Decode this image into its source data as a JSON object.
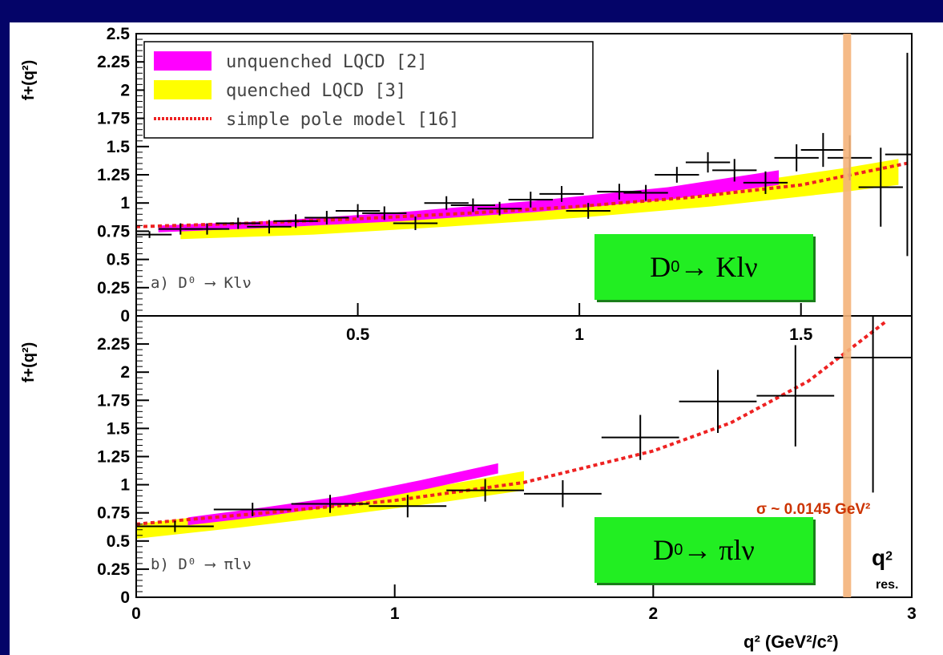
{
  "chart_data": [
    {
      "type": "line",
      "panel": "a",
      "process_label": "a) D⁰ ⟶ Klν",
      "ylabel": "f+(q²)",
      "xlim": [
        0,
        1.75
      ],
      "ylim": [
        0,
        2.5
      ],
      "y_ticks": [
        "2.5",
        "2.25",
        "2",
        "1.75",
        "1.5",
        "1.25",
        "1",
        "0.75",
        "0.5",
        "0.25",
        "0"
      ],
      "x_ticks": [
        "0.5",
        "1",
        "1.5"
      ],
      "legend": [
        {
          "label": "unquenched LQCD [2]",
          "color": "#ff00ff",
          "style": "band"
        },
        {
          "label": "quenched LQCD [3]",
          "color": "#ffff00",
          "style": "band"
        },
        {
          "label": "simple pole model [16]",
          "color": "#ee2222",
          "style": "dotted"
        }
      ],
      "series": [
        {
          "name": "unquenched LQCD [2]",
          "band": {
            "x": [
              0.05,
              0.3,
              0.6,
              0.9,
              1.2,
              1.45
            ],
            "lo": [
              0.74,
              0.78,
              0.84,
              0.92,
              1.03,
              1.16
            ],
            "hi": [
              0.8,
              0.84,
              0.92,
              1.02,
              1.14,
              1.29
            ]
          }
        },
        {
          "name": "quenched LQCD [3]",
          "band": {
            "x": [
              0.1,
              0.4,
              0.7,
              1.0,
              1.3,
              1.6,
              1.72
            ],
            "lo": [
              0.68,
              0.72,
              0.79,
              0.87,
              0.97,
              1.1,
              1.16
            ],
            "hi": [
              0.78,
              0.83,
              0.9,
              1.0,
              1.14,
              1.31,
              1.39
            ]
          }
        },
        {
          "name": "simple pole model [16]",
          "x": [
            0,
            0.25,
            0.5,
            0.75,
            1.0,
            1.25,
            1.5,
            1.75
          ],
          "y": [
            0.79,
            0.82,
            0.86,
            0.91,
            0.97,
            1.05,
            1.16,
            1.36
          ]
        },
        {
          "points": [
            {
              "x": 0.03,
              "y": 0.72,
              "xe": 0.05,
              "ye": 0.03
            },
            {
              "x": 0.1,
              "y": 0.77,
              "xe": 0.05,
              "ye": 0.05
            },
            {
              "x": 0.16,
              "y": 0.77,
              "xe": 0.05,
              "ye": 0.05
            },
            {
              "x": 0.23,
              "y": 0.82,
              "xe": 0.05,
              "ye": 0.05
            },
            {
              "x": 0.3,
              "y": 0.79,
              "xe": 0.05,
              "ye": 0.06
            },
            {
              "x": 0.36,
              "y": 0.84,
              "xe": 0.05,
              "ye": 0.06
            },
            {
              "x": 0.43,
              "y": 0.87,
              "xe": 0.05,
              "ye": 0.06
            },
            {
              "x": 0.5,
              "y": 0.93,
              "xe": 0.05,
              "ye": 0.06
            },
            {
              "x": 0.56,
              "y": 0.91,
              "xe": 0.05,
              "ye": 0.06
            },
            {
              "x": 0.63,
              "y": 0.82,
              "xe": 0.05,
              "ye": 0.06
            },
            {
              "x": 0.7,
              "y": 1.0,
              "xe": 0.05,
              "ye": 0.06
            },
            {
              "x": 0.76,
              "y": 0.98,
              "xe": 0.05,
              "ye": 0.06
            },
            {
              "x": 0.82,
              "y": 0.95,
              "xe": 0.05,
              "ye": 0.06
            },
            {
              "x": 0.89,
              "y": 1.03,
              "xe": 0.05,
              "ye": 0.07
            },
            {
              "x": 0.96,
              "y": 1.08,
              "xe": 0.05,
              "ye": 0.07
            },
            {
              "x": 1.02,
              "y": 0.93,
              "xe": 0.05,
              "ye": 0.07
            },
            {
              "x": 1.09,
              "y": 1.1,
              "xe": 0.05,
              "ye": 0.07
            },
            {
              "x": 1.15,
              "y": 1.09,
              "xe": 0.05,
              "ye": 0.07
            },
            {
              "x": 1.22,
              "y": 1.25,
              "xe": 0.05,
              "ye": 0.07
            },
            {
              "x": 1.29,
              "y": 1.36,
              "xe": 0.05,
              "ye": 0.09
            },
            {
              "x": 1.35,
              "y": 1.29,
              "xe": 0.05,
              "ye": 0.1
            },
            {
              "x": 1.42,
              "y": 1.18,
              "xe": 0.05,
              "ye": 0.1
            },
            {
              "x": 1.49,
              "y": 1.4,
              "xe": 0.05,
              "ye": 0.12
            },
            {
              "x": 1.55,
              "y": 1.47,
              "xe": 0.05,
              "ye": 0.15
            },
            {
              "x": 1.61,
              "y": 1.4,
              "xe": 0.05,
              "ye": 0.2
            },
            {
              "x": 1.68,
              "y": 1.14,
              "xe": 0.05,
              "ye": 0.35
            },
            {
              "x": 1.74,
              "y": 1.43,
              "xe": 0.05,
              "ye": 0.9
            }
          ]
        }
      ]
    },
    {
      "type": "line",
      "panel": "b",
      "process_label": "b) D⁰ ⟶ πlν",
      "ylabel": "f+(q²)",
      "xlim": [
        0,
        3
      ],
      "ylim": [
        0,
        2.5
      ],
      "y_ticks": [
        "2.25",
        "2",
        "1.75",
        "1.5",
        "1.25",
        "1",
        "0.75",
        "0.5",
        "0.25",
        "0"
      ],
      "x_ticks": [
        "0",
        "1",
        "2",
        "3"
      ],
      "xlabel": "q² (GeV²/c²)",
      "series": [
        {
          "name": "unquenched LQCD [2]",
          "band": {
            "x": [
              0.2,
              0.5,
              0.8,
              1.1,
              1.4
            ],
            "lo": [
              0.64,
              0.72,
              0.82,
              0.95,
              1.1
            ],
            "hi": [
              0.71,
              0.8,
              0.9,
              1.04,
              1.19
            ]
          }
        },
        {
          "name": "quenched LQCD [3]",
          "band": {
            "x": [
              0.0,
              0.4,
              0.8,
              1.2,
              1.5
            ],
            "lo": [
              0.52,
              0.62,
              0.73,
              0.85,
              0.95
            ],
            "hi": [
              0.65,
              0.76,
              0.88,
              1.0,
              1.12
            ]
          }
        },
        {
          "name": "simple pole model [16]",
          "x": [
            0,
            0.5,
            1.0,
            1.5,
            2.0,
            2.3,
            2.6,
            2.9
          ],
          "y": [
            0.65,
            0.75,
            0.86,
            1.02,
            1.3,
            1.55,
            1.92,
            2.45
          ]
        },
        {
          "points": [
            {
              "x": 0.15,
              "y": 0.63,
              "xe": 0.15,
              "ye": 0.05
            },
            {
              "x": 0.45,
              "y": 0.78,
              "xe": 0.15,
              "ye": 0.06
            },
            {
              "x": 0.75,
              "y": 0.83,
              "xe": 0.15,
              "ye": 0.08
            },
            {
              "x": 1.05,
              "y": 0.81,
              "xe": 0.15,
              "ye": 0.1
            },
            {
              "x": 1.35,
              "y": 0.95,
              "xe": 0.15,
              "ye": 0.1
            },
            {
              "x": 1.65,
              "y": 0.92,
              "xe": 0.15,
              "ye": 0.12
            },
            {
              "x": 1.95,
              "y": 1.42,
              "xe": 0.15,
              "ye": 0.2
            },
            {
              "x": 2.25,
              "y": 1.74,
              "xe": 0.15,
              "ye": 0.28
            },
            {
              "x": 2.55,
              "y": 1.79,
              "xe": 0.15,
              "ye": 0.45
            },
            {
              "x": 2.85,
              "y": 2.13,
              "xe": 0.15,
              "ye": 1.2
            }
          ]
        }
      ]
    }
  ],
  "annotations": {
    "box_top": {
      "main": "D",
      "sup": "0",
      "rest": " → Klν"
    },
    "box_bottom": {
      "main": "D",
      "sup": "0",
      "rest": " → πlν"
    },
    "resonance_q2": 2.75,
    "sigma": "σ ~ 0.0145 GeV²",
    "q2": "q",
    "q2_sup": "2",
    "q2_sub": "res."
  },
  "colors": {
    "background": "#040468",
    "unquenched": "#ff00ff",
    "quenched": "#ffff00",
    "pole": "#ee2222",
    "resonance": "#f4b27a",
    "box": "#22ee22"
  }
}
